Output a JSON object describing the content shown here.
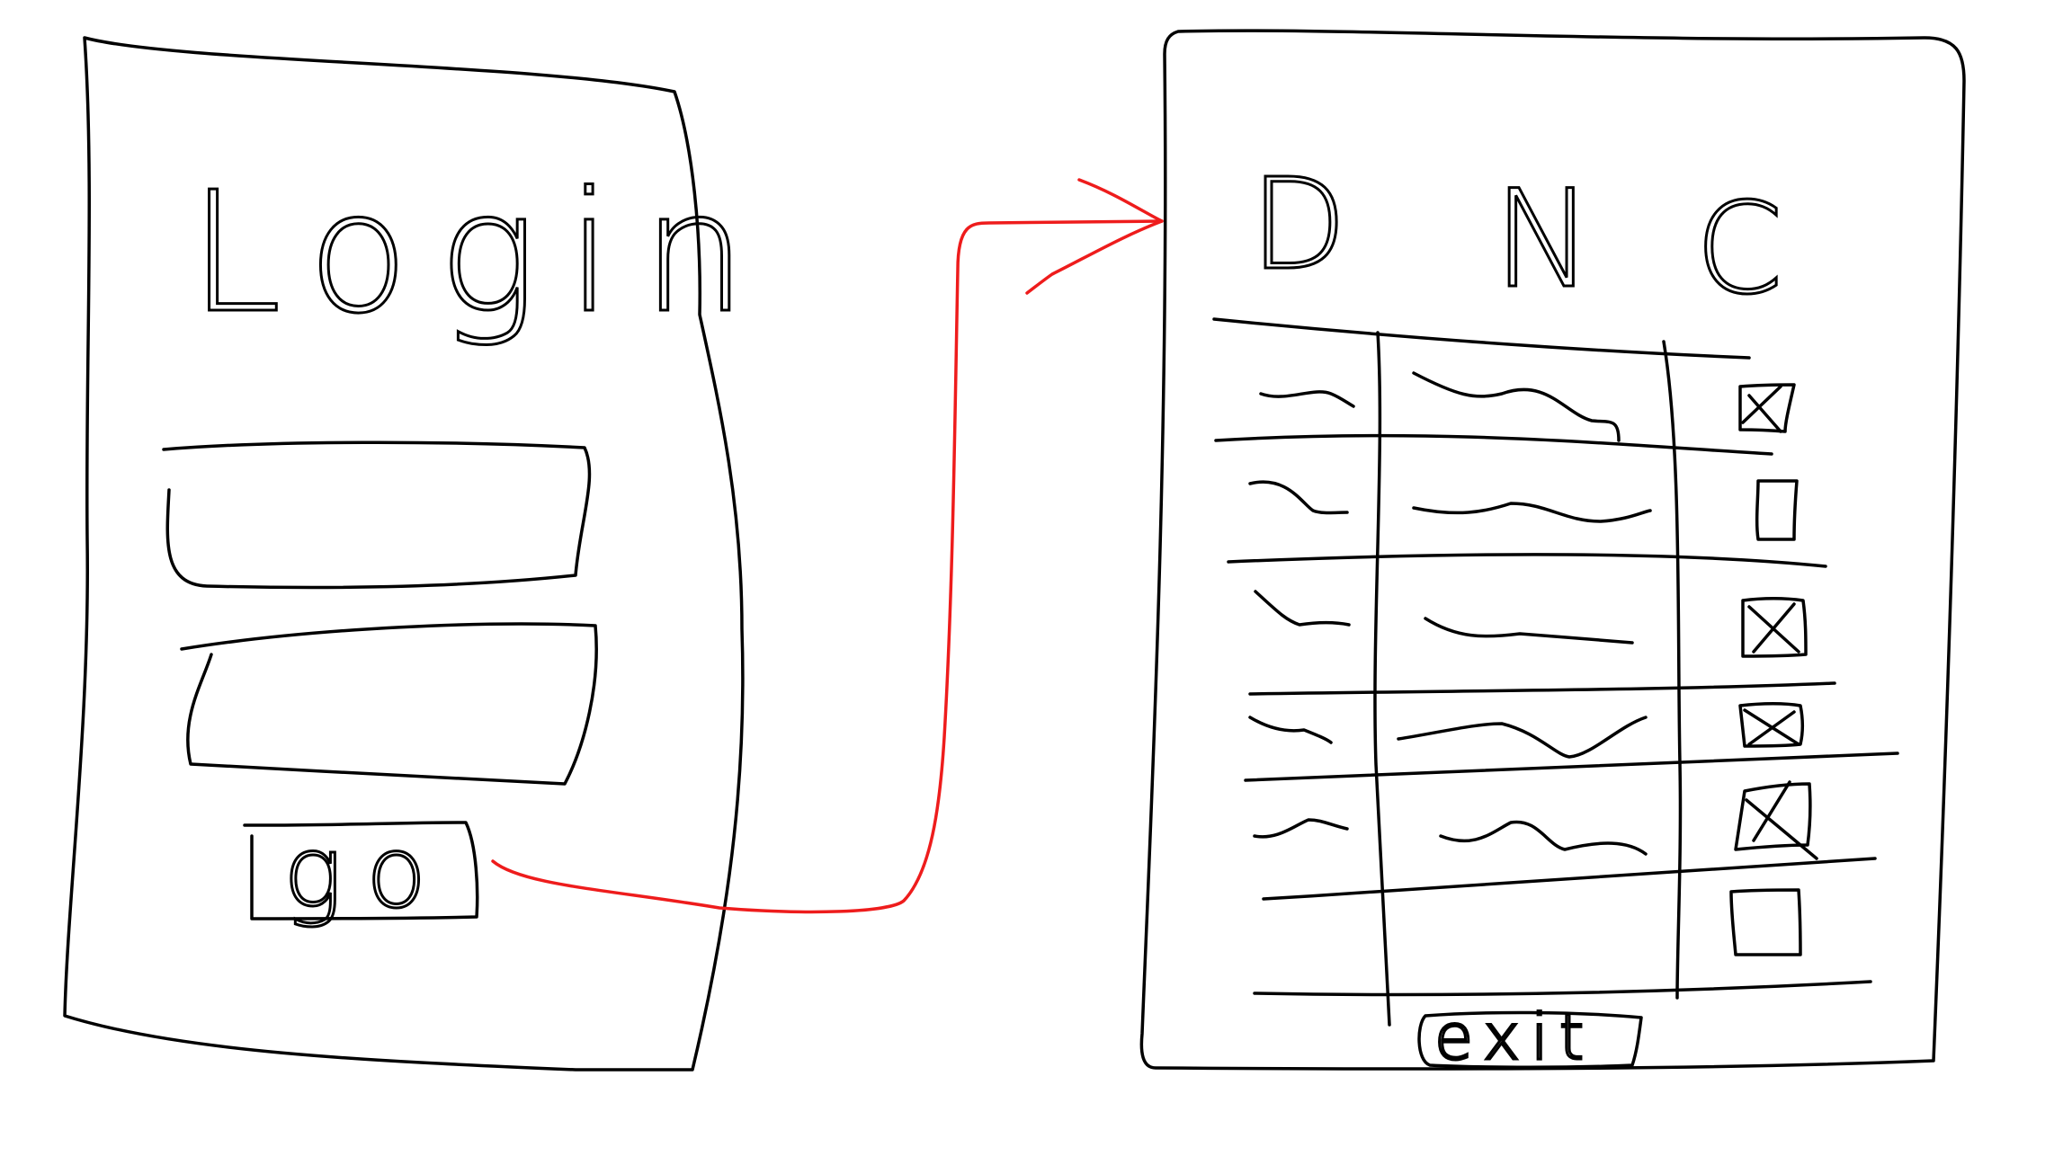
{
  "login_screen": {
    "title": "Login",
    "submit_button_label": "go"
  },
  "list_screen": {
    "column_headers": [
      "D",
      "N",
      "C"
    ],
    "rows": [
      {
        "checkbox": "checked"
      },
      {
        "checkbox": "unchecked"
      },
      {
        "checkbox": "checked"
      },
      {
        "checkbox": "checked"
      },
      {
        "checkbox": "checked"
      },
      {
        "checkbox": "unchecked"
      }
    ],
    "exit_button_label": "exit"
  },
  "colors": {
    "ink": "#000000",
    "flow_arrow": "#ee1c1c",
    "background": "#ffffff"
  }
}
